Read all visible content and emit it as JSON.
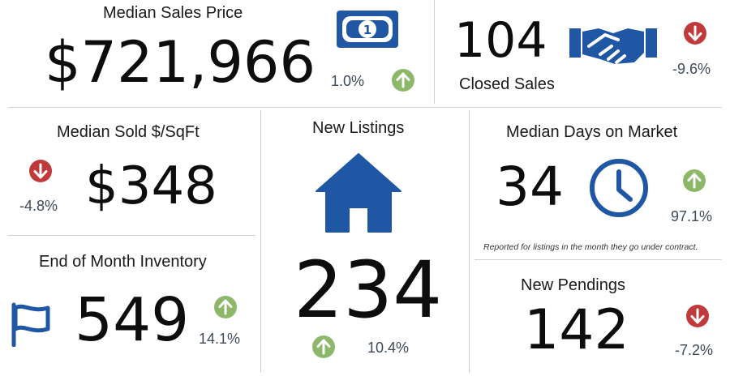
{
  "colors": {
    "up": "#8db86a",
    "down": "#c0393b",
    "icon_blue": "#1f57a4"
  },
  "median_sales_price": {
    "title": "Median Sales Price",
    "value": "$721,966",
    "change": "1.0%",
    "direction": "up",
    "icon": "dollar-bill-icon"
  },
  "closed_sales": {
    "title": "Closed Sales",
    "value": "104",
    "change": "-9.6%",
    "direction": "down",
    "icon": "handshake-icon"
  },
  "median_sold_sqft": {
    "title": "Median Sold $/SqFt",
    "value": "$348",
    "change": "-4.8%",
    "direction": "down"
  },
  "new_listings": {
    "title": "New Listings",
    "value": "234",
    "change": "10.4%",
    "direction": "up",
    "icon": "house-icon"
  },
  "median_days_on_market": {
    "title": "Median Days on Market",
    "value": "34",
    "change": "97.1%",
    "direction": "up",
    "icon": "clock-icon",
    "note": "Reported for listings in the month they go under contract."
  },
  "end_of_month_inventory": {
    "title": "End of Month Inventory",
    "value": "549",
    "change": "14.1%",
    "direction": "up",
    "icon": "flag-icon"
  },
  "new_pendings": {
    "title": "New Pendings",
    "value": "142",
    "change": "-7.2%",
    "direction": "down"
  }
}
